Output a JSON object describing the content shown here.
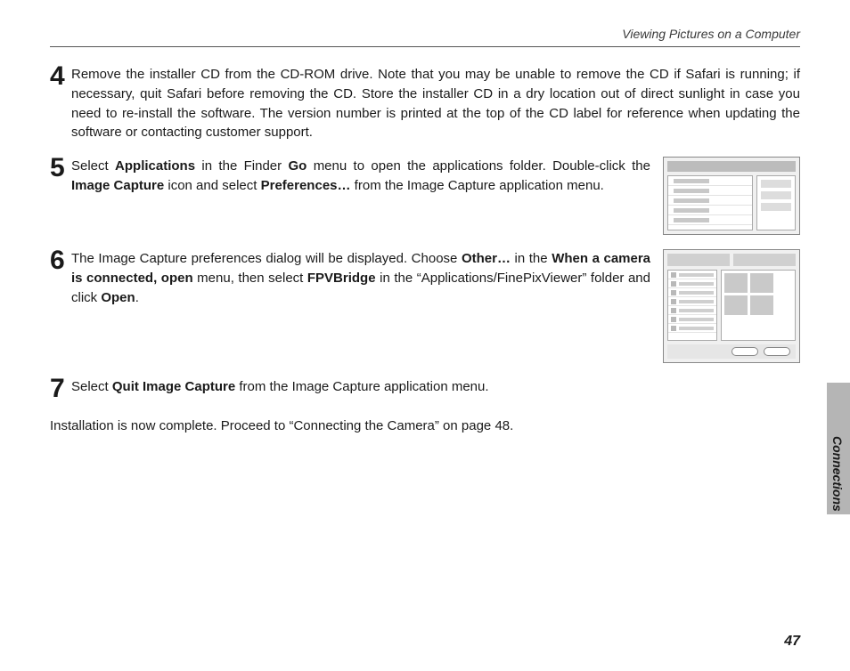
{
  "header": {
    "title": "Viewing Pictures on a Computer"
  },
  "steps": [
    {
      "num": "4",
      "parts": [
        {
          "t": "Remove the installer CD from the CD-ROM drive.  Note that you may be unable to remove the CD if Safari is running; if necessary, quit Safari before removing the CD.  Store the installer CD in a dry location out of direct sunlight in case you need to re-install the software.  The version number is printed at the top of the CD label for reference when updating the software or contacting customer support."
        }
      ],
      "figure": null
    },
    {
      "num": "5",
      "parts": [
        {
          "t": "Select "
        },
        {
          "b": "Applications"
        },
        {
          "t": " in the Finder "
        },
        {
          "b": "Go"
        },
        {
          "t": " menu to open the applications folder.  Double-click the "
        },
        {
          "b": "Image Capture"
        },
        {
          "t": " icon and select "
        },
        {
          "b": "Preferences…"
        },
        {
          "t": " from the Image Capture application menu."
        }
      ],
      "figure": "fig1"
    },
    {
      "num": "6",
      "parts": [
        {
          "t": "The Image Capture preferences dialog will be displayed.  Choose "
        },
        {
          "b": "Other…"
        },
        {
          "t": " in the "
        },
        {
          "b": "When a camera is connected, open"
        },
        {
          "t": " menu, then select "
        },
        {
          "b": "FPVBridge"
        },
        {
          "t": " in the “Applications/FinePixViewer” folder and click "
        },
        {
          "b": "Open"
        },
        {
          "t": "."
        }
      ],
      "figure": "fig2"
    },
    {
      "num": "7",
      "parts": [
        {
          "t": "Select "
        },
        {
          "b": "Quit Image Capture"
        },
        {
          "t": " from the Image Capture application menu."
        }
      ],
      "figure": null
    }
  ],
  "closing": "Installation is now complete.  Proceed to “Connecting the Camera” on page 48.",
  "sideLabel": "Connections",
  "pageNumber": "47"
}
